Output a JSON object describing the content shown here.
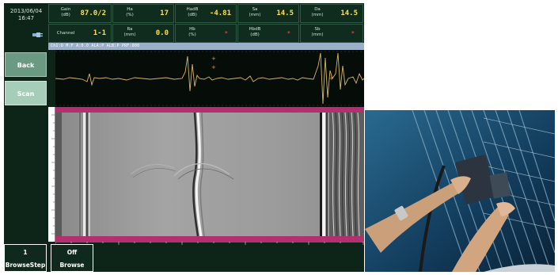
{
  "header": {
    "date": "2013/06/04",
    "time": "16:47",
    "params": [
      {
        "label": "Gain\n(dB)",
        "value": "87.0/2",
        "red": false
      },
      {
        "label": "Ha\n(%)",
        "value": "17",
        "red": false
      },
      {
        "label": "HadB\n(dB)",
        "value": "-4.81",
        "red": false
      },
      {
        "label": "Sa\n(mm)",
        "value": "14.5",
        "red": false
      },
      {
        "label": "Da\n(mm)",
        "value": "14.5",
        "red": false
      },
      {
        "label": "Channel",
        "value": "1-1",
        "red": false
      },
      {
        "label": "Ra\n(mm)",
        "value": "0.0",
        "red": false
      },
      {
        "label": "Hb\n(%)",
        "value": "*",
        "red": true
      },
      {
        "label": "HbdB\n(dB)",
        "value": "*",
        "red": true
      },
      {
        "label": "Sb\n(mm)",
        "value": "*",
        "red": true
      }
    ]
  },
  "status_strip": "Ch1:D  M:F  A:0.0  ALA:P  ALB:P  PRF:800",
  "side_buttons": {
    "back": "Back",
    "scan": "Scan"
  },
  "bottom_buttons": {
    "browse_step": {
      "value": "1",
      "label": "BrowseStep"
    },
    "browse": {
      "value": "Off",
      "label": "Browse"
    }
  },
  "icons": {
    "connection": "plug-icon"
  },
  "colors": {
    "screen_bg": "#0d2418",
    "value_yellow": "#ffe040",
    "alarm_red": "#e04040",
    "ruler_magenta": "#b03070",
    "ascan_trace": "#d8b860"
  }
}
